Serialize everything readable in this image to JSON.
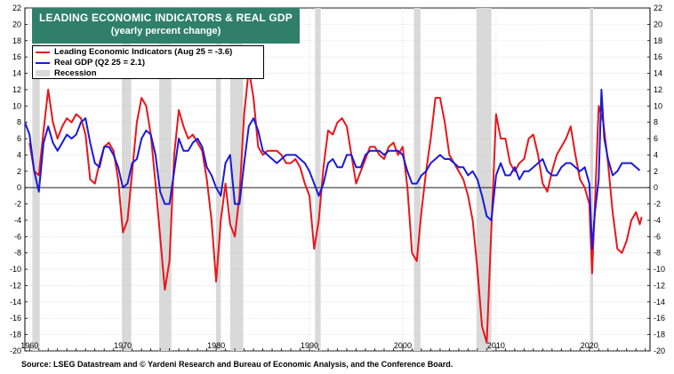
{
  "title": {
    "line1": "LEADING ECONOMIC INDICATORS & REAL GDP",
    "line2": "(yearly percent change)"
  },
  "legend": {
    "lei": "Leading Economic Indicators (Aug 25 = -3.6)",
    "gdp": "Real GDP (Q2 25 = 2.1)",
    "recession": "Recession"
  },
  "source": "Source: LSEG Datastream and © Yardeni Research and Bureau of Economic Analysis, and the Conference Board.",
  "colors": {
    "lei": "#e8161c",
    "gdp": "#1a1adb",
    "recession": "#d9d9d9",
    "title_bg": "#2f7f6b"
  },
  "chart_data": {
    "type": "line",
    "xlim": [
      1959.5,
      2026.5
    ],
    "ylim": [
      -20,
      22
    ],
    "y_ticks": [
      -20,
      -18,
      -16,
      -14,
      -12,
      -10,
      -8,
      -6,
      -4,
      -2,
      0,
      2,
      4,
      6,
      8,
      10,
      12,
      14,
      16,
      18,
      20,
      22
    ],
    "x_tick_labels": [
      "1960",
      "1970",
      "1980",
      "1990",
      "2000",
      "2010",
      "2020"
    ],
    "x_ticks": [
      1960,
      1970,
      1980,
      1990,
      2000,
      2010,
      2020
    ],
    "grid": true,
    "legend_position": "top-left",
    "recessions": [
      [
        1960.3,
        1961.1
      ],
      [
        1969.9,
        1970.9
      ],
      [
        1973.9,
        1975.2
      ],
      [
        1980.0,
        1980.5
      ],
      [
        1981.5,
        1982.9
      ],
      [
        1990.6,
        1991.2
      ],
      [
        2001.2,
        2001.9
      ],
      [
        2007.9,
        2009.5
      ],
      [
        2020.1,
        2020.4
      ]
    ],
    "series": [
      {
        "name": "Leading Economic Indicators (Aug 25 = -3.6)",
        "x": [
          1960.0,
          1960.5,
          1961.0,
          1961.5,
          1962.0,
          1962.5,
          1963.0,
          1963.5,
          1964.0,
          1964.5,
          1965.0,
          1965.5,
          1966.0,
          1966.5,
          1967.0,
          1967.5,
          1968.0,
          1968.5,
          1969.0,
          1969.5,
          1970.0,
          1970.5,
          1971.0,
          1971.5,
          1972.0,
          1972.5,
          1973.0,
          1973.5,
          1974.0,
          1974.5,
          1975.0,
          1975.5,
          1976.0,
          1976.5,
          1977.0,
          1977.5,
          1978.0,
          1978.5,
          1979.0,
          1979.5,
          1980.0,
          1980.5,
          1981.0,
          1981.5,
          1982.0,
          1982.5,
          1983.0,
          1983.5,
          1984.0,
          1984.5,
          1985.0,
          1985.5,
          1986.0,
          1986.5,
          1987.0,
          1987.5,
          1988.0,
          1988.5,
          1989.0,
          1989.5,
          1990.0,
          1990.5,
          1991.0,
          1991.5,
          1992.0,
          1992.5,
          1993.0,
          1993.5,
          1994.0,
          1994.5,
          1995.0,
          1995.5,
          1996.0,
          1996.5,
          1997.0,
          1997.5,
          1998.0,
          1998.5,
          1999.0,
          1999.5,
          2000.0,
          2000.5,
          2001.0,
          2001.5,
          2002.0,
          2002.5,
          2003.0,
          2003.5,
          2004.0,
          2004.5,
          2005.0,
          2005.5,
          2006.0,
          2006.5,
          2007.0,
          2007.5,
          2008.0,
          2008.5,
          2009.0,
          2009.5,
          2010.0,
          2010.5,
          2011.0,
          2011.5,
          2012.0,
          2012.5,
          2013.0,
          2013.5,
          2014.0,
          2014.5,
          2015.0,
          2015.5,
          2016.0,
          2016.5,
          2017.0,
          2017.5,
          2018.0,
          2018.5,
          2019.0,
          2019.5,
          2020.0,
          2020.3,
          2020.6,
          2021.0,
          2021.5,
          2022.0,
          2022.5,
          2023.0,
          2023.5,
          2024.0,
          2024.5,
          2025.0,
          2025.4,
          2025.6
        ],
        "values": [
          5.5,
          2.0,
          1.5,
          7.0,
          12.0,
          8.0,
          6.0,
          7.5,
          8.5,
          8.0,
          9.0,
          8.5,
          6.5,
          1.0,
          0.5,
          3.0,
          5.0,
          5.5,
          4.5,
          1.0,
          -5.5,
          -4.0,
          2.0,
          8.0,
          11.0,
          10.0,
          6.5,
          0.5,
          -6.0,
          -12.5,
          -9.0,
          4.0,
          9.5,
          7.5,
          6.0,
          6.5,
          5.5,
          4.5,
          1.0,
          -4.0,
          -11.5,
          -4.0,
          0.5,
          -4.5,
          -6.0,
          -1.0,
          9.0,
          14.5,
          11.0,
          5.0,
          4.0,
          4.5,
          4.5,
          4.5,
          4.0,
          3.0,
          3.0,
          3.5,
          2.5,
          0.5,
          -1.0,
          -7.5,
          -4.0,
          2.5,
          7.0,
          6.5,
          8.0,
          8.5,
          7.5,
          4.0,
          0.5,
          2.0,
          3.5,
          5.0,
          5.0,
          4.0,
          3.5,
          5.0,
          5.5,
          4.0,
          5.0,
          0.0,
          -8.0,
          -9.0,
          -3.0,
          2.0,
          6.0,
          11.0,
          11.0,
          8.0,
          4.0,
          3.0,
          2.0,
          1.0,
          -1.0,
          -4.0,
          -10.0,
          -17.0,
          -19.0,
          -5.0,
          9.0,
          6.0,
          6.0,
          3.0,
          2.0,
          3.0,
          3.5,
          6.0,
          6.5,
          4.0,
          0.5,
          -0.5,
          2.0,
          4.0,
          5.0,
          6.0,
          7.5,
          4.0,
          1.0,
          0.0,
          -2.0,
          -10.5,
          -2.0,
          10.0,
          8.0,
          3.0,
          -3.0,
          -7.5,
          -8.0,
          -6.5,
          -4.0,
          -3.0,
          -4.5,
          -3.6
        ]
      },
      {
        "name": "Real GDP (Q2 25 = 2.1)",
        "x": [
          1959.5,
          1960.0,
          1960.5,
          1961.0,
          1961.5,
          1962.0,
          1962.5,
          1963.0,
          1963.5,
          1964.0,
          1964.5,
          1965.0,
          1965.5,
          1966.0,
          1966.5,
          1967.0,
          1967.5,
          1968.0,
          1968.5,
          1969.0,
          1969.5,
          1970.0,
          1970.5,
          1971.0,
          1971.5,
          1972.0,
          1972.5,
          1973.0,
          1973.5,
          1974.0,
          1974.5,
          1975.0,
          1975.5,
          1976.0,
          1976.5,
          1977.0,
          1977.5,
          1978.0,
          1978.5,
          1979.0,
          1979.5,
          1980.0,
          1980.5,
          1981.0,
          1981.5,
          1982.0,
          1982.5,
          1983.0,
          1983.5,
          1984.0,
          1984.5,
          1985.0,
          1985.5,
          1986.0,
          1986.5,
          1987.0,
          1987.5,
          1988.0,
          1988.5,
          1989.0,
          1989.5,
          1990.0,
          1990.5,
          1991.0,
          1991.5,
          1992.0,
          1992.5,
          1993.0,
          1993.5,
          1994.0,
          1994.5,
          1995.0,
          1995.5,
          1996.0,
          1996.5,
          1997.0,
          1997.5,
          1998.0,
          1998.5,
          1999.0,
          1999.5,
          2000.0,
          2000.5,
          2001.0,
          2001.5,
          2002.0,
          2002.5,
          2003.0,
          2003.5,
          2004.0,
          2004.5,
          2005.0,
          2005.5,
          2006.0,
          2006.5,
          2007.0,
          2007.5,
          2008.0,
          2008.5,
          2009.0,
          2009.5,
          2010.0,
          2010.5,
          2011.0,
          2011.5,
          2012.0,
          2012.5,
          2013.0,
          2013.5,
          2014.0,
          2014.5,
          2015.0,
          2015.5,
          2016.0,
          2016.5,
          2017.0,
          2017.5,
          2018.0,
          2018.5,
          2019.0,
          2019.5,
          2020.0,
          2020.3,
          2020.6,
          2021.0,
          2021.3,
          2021.6,
          2022.0,
          2022.5,
          2023.0,
          2023.5,
          2024.0,
          2024.5,
          2025.0,
          2025.4
        ],
        "values": [
          8.0,
          6.5,
          2.0,
          -0.5,
          5.5,
          7.5,
          5.5,
          4.5,
          5.5,
          6.5,
          6.0,
          6.5,
          8.0,
          8.5,
          5.5,
          3.0,
          2.5,
          5.0,
          5.0,
          4.0,
          2.5,
          0.0,
          0.5,
          3.0,
          3.5,
          6.0,
          7.0,
          6.5,
          4.0,
          -0.5,
          -2.0,
          -2.0,
          2.0,
          6.0,
          4.5,
          4.5,
          5.5,
          6.0,
          5.0,
          2.5,
          1.5,
          0.0,
          -1.0,
          3.0,
          4.0,
          -2.0,
          -2.0,
          3.0,
          7.5,
          8.5,
          7.0,
          4.5,
          4.0,
          3.5,
          3.0,
          3.5,
          4.0,
          4.0,
          4.0,
          3.5,
          3.0,
          2.0,
          0.5,
          -1.0,
          0.5,
          3.0,
          3.5,
          2.5,
          2.5,
          4.0,
          4.0,
          2.5,
          2.5,
          4.0,
          4.5,
          4.5,
          4.5,
          4.0,
          4.5,
          4.5,
          4.5,
          4.0,
          2.0,
          0.5,
          0.5,
          1.5,
          2.0,
          3.0,
          3.5,
          4.0,
          3.5,
          3.5,
          3.0,
          2.5,
          2.5,
          1.5,
          2.0,
          1.0,
          -1.0,
          -3.5,
          -4.0,
          1.5,
          3.0,
          1.5,
          1.5,
          2.5,
          1.0,
          2.0,
          2.0,
          2.5,
          3.0,
          3.5,
          2.0,
          1.5,
          1.5,
          2.5,
          3.0,
          3.0,
          2.5,
          2.0,
          2.5,
          0.5,
          -7.5,
          -3.0,
          1.0,
          12.0,
          6.0,
          3.5,
          1.5,
          2.0,
          3.0,
          3.0,
          3.0,
          2.5,
          2.1
        ]
      }
    ]
  }
}
